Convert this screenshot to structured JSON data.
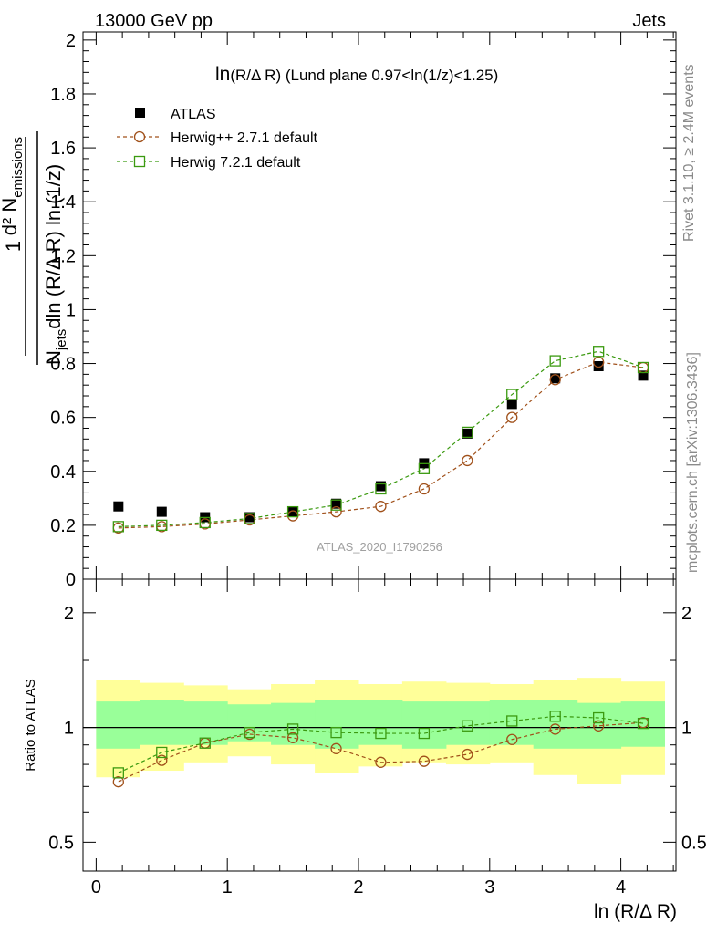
{
  "header": {
    "left": "13000 GeV pp",
    "right": "Jets"
  },
  "side_labels": {
    "rivet": "Rivet 3.1.10, ≥ 2.4M events",
    "mcplots": "mcplots.cern.ch [arXiv:1306.3436]"
  },
  "watermark": "ATLAS_2020_I1790256",
  "chart_data": [
    {
      "type": "scatter",
      "title_prefix": "ln",
      "title_main": "(R/Δ R) (Lund plane 0.97<ln(1/z)<1.25)",
      "ylabel": {
        "frac_num": "1",
        "num_main": "d² N",
        "num_sub": "emissions",
        "den_main": "N",
        "den_sub": "jets",
        "den_rest": "dln (R/Δ R) ln (1/z)"
      },
      "xlim": [
        -0.1,
        4.42
      ],
      "ylim": [
        0,
        2.03
      ],
      "yticks": [
        0,
        0.2,
        0.4,
        0.6,
        0.8,
        1,
        1.2,
        1.4,
        1.6,
        1.8,
        2
      ],
      "ytick_labels": [
        "0",
        "0.2",
        "0.4",
        "0.6",
        "0.8",
        "1",
        "1.2",
        "1.4",
        "1.6",
        "1.8",
        "2"
      ],
      "x": [
        0.17,
        0.5,
        0.83,
        1.17,
        1.5,
        1.83,
        2.17,
        2.5,
        2.83,
        3.17,
        3.5,
        3.83,
        4.17
      ],
      "bin_edges": [
        0,
        0.333,
        0.667,
        1,
        1.333,
        1.667,
        2,
        2.333,
        2.667,
        3,
        3.333,
        3.667,
        4,
        4.333
      ],
      "series": [
        {
          "name": "ATLAS",
          "color": "#000000",
          "marker": "filled-square",
          "values": [
            0.27,
            0.25,
            0.23,
            0.23,
            0.25,
            0.28,
            0.345,
            0.43,
            0.54,
            0.65,
            0.745,
            0.79,
            0.755
          ]
        },
        {
          "name": "Herwig++ 2.7.1 default",
          "color": "#a0501a",
          "marker": "open-circle",
          "values": [
            0.19,
            0.195,
            0.205,
            0.22,
            0.235,
            0.25,
            0.27,
            0.335,
            0.44,
            0.6,
            0.74,
            0.805,
            0.785
          ]
        },
        {
          "name": "Herwig 7.2.1 default",
          "color": "#3b9a10",
          "marker": "open-square",
          "values": [
            0.195,
            0.2,
            0.21,
            0.225,
            0.25,
            0.275,
            0.335,
            0.41,
            0.545,
            0.685,
            0.81,
            0.845,
            0.785
          ]
        }
      ]
    },
    {
      "type": "scatter",
      "ylabel": "Ratio to ATLAS",
      "xlabel": "ln (R/Δ R)",
      "yscale": "log",
      "ylim": [
        0.42,
        2.45
      ],
      "yticks": [
        0.5,
        1,
        2
      ],
      "ytick_labels": [
        "0.5",
        "1",
        "2"
      ],
      "xticks": [
        0,
        1,
        2,
        3,
        4
      ],
      "xtick_labels": [
        "0",
        "1",
        "2",
        "3",
        "4"
      ],
      "x": [
        0.17,
        0.5,
        0.83,
        1.17,
        1.5,
        1.83,
        2.17,
        2.5,
        2.83,
        3.17,
        3.5,
        3.83,
        4.17
      ],
      "bin_edges": [
        0,
        0.333,
        0.667,
        1,
        1.333,
        1.667,
        2,
        2.333,
        2.667,
        3,
        3.333,
        3.667,
        4,
        4.333
      ],
      "band_colors": {
        "inner": "#99ff99",
        "outer": "#ffff99"
      },
      "uncertainty_inner": [
        [
          0.88,
          1.17
        ],
        [
          0.9,
          1.18
        ],
        [
          0.9,
          1.17
        ],
        [
          0.92,
          1.15
        ],
        [
          0.9,
          1.16
        ],
        [
          0.88,
          1.18
        ],
        [
          0.9,
          1.18
        ],
        [
          0.88,
          1.17
        ],
        [
          0.9,
          1.17
        ],
        [
          0.9,
          1.18
        ],
        [
          0.88,
          1.18
        ],
        [
          0.88,
          1.16
        ],
        [
          0.89,
          1.17
        ]
      ],
      "uncertainty_outer": [
        [
          0.74,
          1.33
        ],
        [
          0.77,
          1.31
        ],
        [
          0.81,
          1.29
        ],
        [
          0.84,
          1.26
        ],
        [
          0.8,
          1.3
        ],
        [
          0.76,
          1.33
        ],
        [
          0.79,
          1.3
        ],
        [
          0.81,
          1.32
        ],
        [
          0.8,
          1.31
        ],
        [
          0.81,
          1.3
        ],
        [
          0.75,
          1.33
        ],
        [
          0.71,
          1.35
        ],
        [
          0.75,
          1.32
        ]
      ],
      "series": [
        {
          "name": "Herwig++ 2.7.1 default",
          "color": "#a0501a",
          "marker": "open-circle",
          "values": [
            0.72,
            0.82,
            0.91,
            0.96,
            0.94,
            0.88,
            0.81,
            0.815,
            0.85,
            0.93,
            0.99,
            1.01,
            1.03
          ]
        },
        {
          "name": "Herwig 7.2.1 default",
          "color": "#3b9a10",
          "marker": "open-square",
          "values": [
            0.76,
            0.86,
            0.91,
            0.97,
            0.99,
            0.97,
            0.965,
            0.965,
            1.01,
            1.04,
            1.07,
            1.06,
            1.025
          ]
        }
      ]
    }
  ]
}
